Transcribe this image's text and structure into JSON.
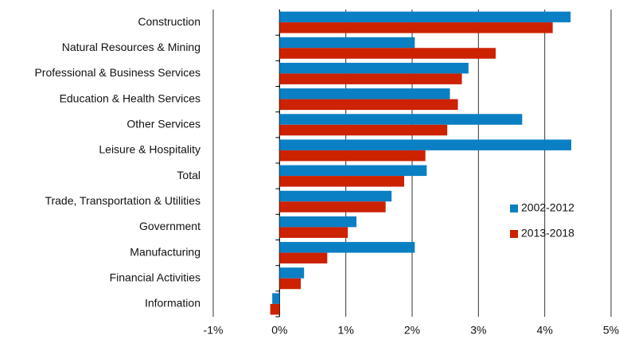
{
  "chart_data": {
    "type": "hbar",
    "categories": [
      "Construction",
      "Natural Resources & Mining",
      "Professional & Business Services",
      "Education & Health Services",
      "Other Services",
      "Leisure & Hospitality",
      "Total",
      "Trade, Transportation & Utilities",
      "Government",
      "Manufacturing",
      "Financial Activities",
      "Information"
    ],
    "series": [
      {
        "name": "2002-2012",
        "color": "#0a7fc4",
        "values": [
          4.39,
          2.04,
          2.85,
          2.57,
          3.66,
          4.4,
          2.22,
          1.69,
          1.16,
          2.04,
          0.37,
          -0.11
        ]
      },
      {
        "name": "2013-2018",
        "color": "#cc2200",
        "values": [
          4.12,
          3.26,
          2.75,
          2.69,
          2.53,
          2.2,
          1.88,
          1.6,
          1.03,
          0.72,
          0.32,
          -0.14
        ]
      }
    ],
    "xlim": [
      -1,
      5
    ],
    "xticks": [
      {
        "value": -1,
        "label": "-1%"
      },
      {
        "value": 0,
        "label": "0%"
      },
      {
        "value": 1,
        "label": "1%"
      },
      {
        "value": 2,
        "label": "2%"
      },
      {
        "value": 3,
        "label": "3%"
      },
      {
        "value": 4,
        "label": "4%"
      },
      {
        "value": 5,
        "label": "5%"
      }
    ],
    "grid": true,
    "legend": "right"
  }
}
